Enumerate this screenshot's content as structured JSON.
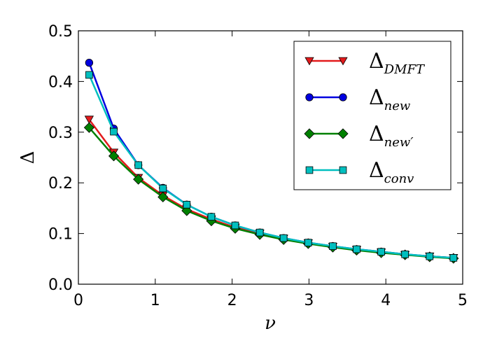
{
  "chart_data": {
    "type": "line",
    "title": "",
    "xlabel": "ν",
    "ylabel": "Δ",
    "xlim": [
      0,
      5
    ],
    "ylim": [
      0,
      0.5
    ],
    "xticks": [
      "0",
      "1",
      "2",
      "3",
      "4",
      "5"
    ],
    "yticks": [
      "0.0",
      "0.1",
      "0.2",
      "0.3",
      "0.4",
      "0.5"
    ],
    "grid": false,
    "legend_position": "top-right",
    "x": [
      0.14,
      0.46,
      0.78,
      1.1,
      1.41,
      1.73,
      2.04,
      2.36,
      2.67,
      2.99,
      3.31,
      3.62,
      3.94,
      4.25,
      4.57,
      4.88
    ],
    "series": [
      {
        "name": "Δ_DMFT",
        "name_main": "Δ",
        "name_sub": "DMFT",
        "color": "#e31a1c",
        "marker": "triangle-down",
        "values": [
          0.325,
          0.26,
          0.21,
          0.175,
          0.148,
          0.128,
          0.112,
          0.1,
          0.09,
          0.081,
          0.074,
          0.068,
          0.063,
          0.058,
          0.055,
          0.052
        ]
      },
      {
        "name": "Δ_new",
        "name_main": "Δ",
        "name_sub": "new",
        "color": "#0000e0",
        "marker": "circle",
        "values": [
          0.437,
          0.307,
          0.235,
          0.19,
          0.157,
          0.133,
          0.116,
          0.102,
          0.091,
          0.082,
          0.075,
          0.069,
          0.064,
          0.059,
          0.055,
          0.052
        ]
      },
      {
        "name": "Δ_new′",
        "name_main": "Δ",
        "name_sub": "new′",
        "color": "#008000",
        "marker": "diamond",
        "values": [
          0.309,
          0.253,
          0.207,
          0.172,
          0.145,
          0.125,
          0.11,
          0.098,
          0.088,
          0.08,
          0.073,
          0.067,
          0.062,
          0.058,
          0.054,
          0.051
        ]
      },
      {
        "name": "Δ_conv",
        "name_main": "Δ",
        "name_sub": "conv",
        "color": "#00bfbf",
        "marker": "square",
        "values": [
          0.413,
          0.301,
          0.235,
          0.189,
          0.157,
          0.133,
          0.116,
          0.102,
          0.091,
          0.082,
          0.075,
          0.069,
          0.064,
          0.059,
          0.055,
          0.052
        ]
      }
    ]
  }
}
